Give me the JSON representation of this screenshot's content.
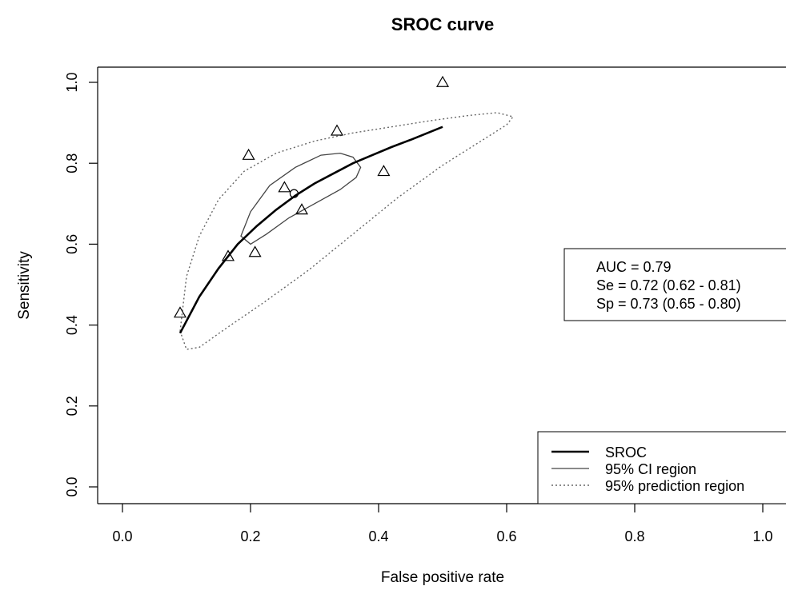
{
  "chart_data": {
    "type": "scatter",
    "title": "SROC curve",
    "xlabel": "False positive rate",
    "ylabel": "Sensitivity",
    "xlim": [
      0,
      1
    ],
    "ylim": [
      0,
      1
    ],
    "xticks": [
      "0.0",
      "0.2",
      "0.4",
      "0.6",
      "0.8",
      "1.0"
    ],
    "yticks": [
      "0.0",
      "0.2",
      "0.4",
      "0.6",
      "0.8",
      "1.0"
    ],
    "grid": false,
    "studies": {
      "marker": "triangle",
      "x": [
        0.09,
        0.165,
        0.197,
        0.207,
        0.253,
        0.28,
        0.335,
        0.408,
        0.5
      ],
      "y": [
        0.43,
        0.57,
        0.82,
        0.58,
        0.74,
        0.685,
        0.88,
        0.78,
        1.0
      ]
    },
    "summary_point": {
      "marker": "circle",
      "x": 0.268,
      "y": 0.725
    },
    "sroc_curve": {
      "x": [
        0.09,
        0.12,
        0.15,
        0.18,
        0.21,
        0.24,
        0.27,
        0.3,
        0.33,
        0.36,
        0.39,
        0.42,
        0.45,
        0.5
      ],
      "y": [
        0.38,
        0.47,
        0.54,
        0.6,
        0.645,
        0.685,
        0.72,
        0.75,
        0.775,
        0.8,
        0.82,
        0.84,
        0.858,
        0.89
      ]
    },
    "ci_region": {
      "x": [
        0.185,
        0.2,
        0.23,
        0.27,
        0.31,
        0.34,
        0.36,
        0.372,
        0.365,
        0.34,
        0.3,
        0.26,
        0.225,
        0.2,
        0.185
      ],
      "y": [
        0.62,
        0.68,
        0.745,
        0.79,
        0.82,
        0.825,
        0.815,
        0.79,
        0.765,
        0.735,
        0.7,
        0.665,
        0.625,
        0.6,
        0.62
      ]
    },
    "prediction_region": {
      "x": [
        0.09,
        0.1,
        0.12,
        0.15,
        0.19,
        0.24,
        0.3,
        0.36,
        0.42,
        0.48,
        0.54,
        0.585,
        0.61,
        0.6,
        0.56,
        0.5,
        0.43,
        0.36,
        0.29,
        0.22,
        0.16,
        0.12,
        0.1,
        0.09
      ],
      "y": [
        0.385,
        0.52,
        0.62,
        0.71,
        0.78,
        0.825,
        0.855,
        0.875,
        0.89,
        0.905,
        0.918,
        0.925,
        0.915,
        0.895,
        0.855,
        0.795,
        0.715,
        0.625,
        0.535,
        0.455,
        0.39,
        0.345,
        0.34,
        0.385
      ]
    },
    "stats_box": {
      "lines": [
        "AUC = 0.79",
        "Se = 0.72 (0.62 - 0.81)",
        "Sp = 0.73 (0.65 - 0.80)"
      ],
      "placement": "right"
    },
    "legend": {
      "placement": "bottom-right",
      "entries": [
        {
          "label": "SROC",
          "style": "thick-solid"
        },
        {
          "label": "95% CI region",
          "style": "thin-solid"
        },
        {
          "label": "95% prediction region",
          "style": "dotted"
        }
      ]
    }
  }
}
